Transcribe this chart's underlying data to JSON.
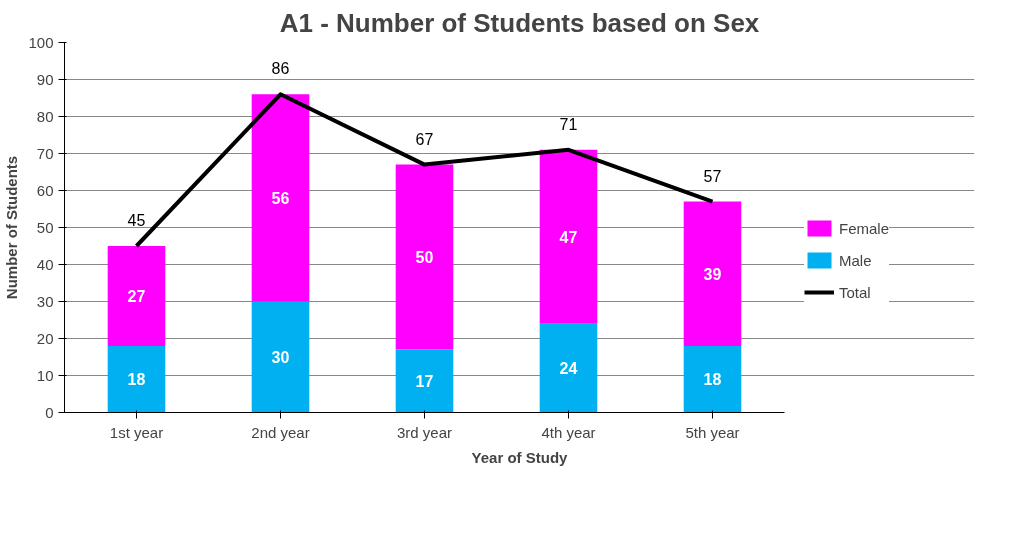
{
  "chart_data": {
    "type": "bar",
    "title": "A1 - Number of Students based on Sex",
    "xlabel": "Year of Study",
    "ylabel": "Number of Students",
    "categories": [
      "1st year",
      "2nd year",
      "3rd year",
      "4th year",
      "5th year"
    ],
    "stacked": true,
    "series": [
      {
        "name": "Male",
        "color": "#00b0f0",
        "values": [
          18,
          30,
          17,
          24,
          18
        ]
      },
      {
        "name": "Female",
        "color": "#ff00ff",
        "values": [
          27,
          56,
          50,
          47,
          39
        ]
      },
      {
        "name": "Total",
        "type": "line",
        "color": "#000000",
        "values": [
          45,
          86,
          67,
          71,
          57
        ]
      }
    ],
    "ylim": [
      0,
      100
    ],
    "yticks": [
      0,
      10,
      20,
      30,
      40,
      50,
      60,
      70,
      80,
      90,
      100
    ],
    "grid": "y",
    "legend": "right",
    "data_labels": true,
    "marker": "none",
    "line_style": "solid"
  }
}
